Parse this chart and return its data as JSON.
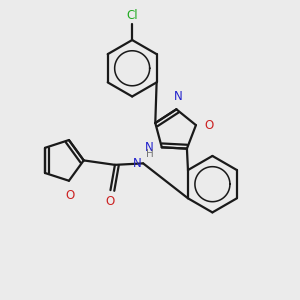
{
  "background_color": "#ebebeb",
  "bond_color": "#1a1a1a",
  "n_color": "#2222cc",
  "o_color": "#cc2222",
  "cl_color": "#22aa22",
  "h_color": "#777777",
  "lw": 1.6,
  "dbo": 0.12,
  "xlim": [
    0,
    10
  ],
  "ylim": [
    0,
    10
  ]
}
